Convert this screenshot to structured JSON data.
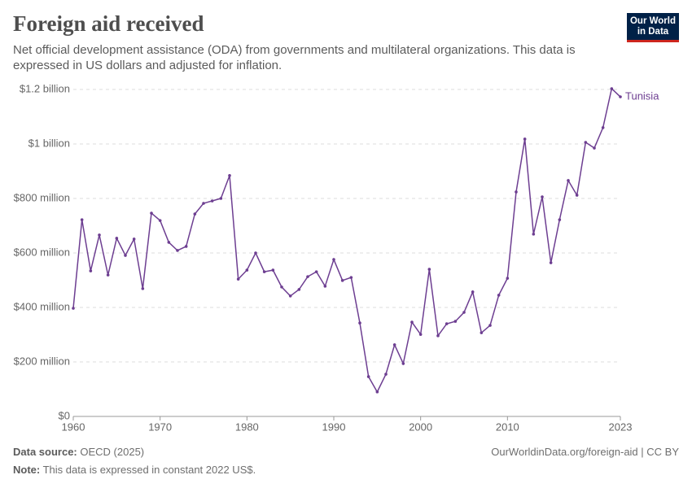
{
  "chart_data": {
    "type": "line",
    "title": "Foreign aid received",
    "subtitle": "Net official development assistance (ODA) from governments and multilateral organizations. This data is expressed in US dollars and adjusted for inflation.",
    "x": [
      1960,
      1961,
      1962,
      1963,
      1964,
      1965,
      1966,
      1967,
      1968,
      1969,
      1970,
      1971,
      1972,
      1973,
      1974,
      1975,
      1976,
      1977,
      1978,
      1979,
      1980,
      1981,
      1982,
      1983,
      1984,
      1985,
      1986,
      1987,
      1988,
      1989,
      1990,
      1991,
      1992,
      1993,
      1994,
      1995,
      1996,
      1997,
      1998,
      1999,
      2000,
      2001,
      2002,
      2003,
      2004,
      2005,
      2006,
      2007,
      2008,
      2009,
      2010,
      2011,
      2012,
      2013,
      2014,
      2015,
      2016,
      2017,
      2018,
      2019,
      2020,
      2021,
      2022,
      2023
    ],
    "series": [
      {
        "name": "Tunisia",
        "color": "#6d3e91",
        "values": [
          397000000,
          722000000,
          534000000,
          666000000,
          519000000,
          654000000,
          591000000,
          651000000,
          469000000,
          746000000,
          719000000,
          639000000,
          609000000,
          624000000,
          743000000,
          782000000,
          791000000,
          800000000,
          884000000,
          504000000,
          537000000,
          600000000,
          531000000,
          537000000,
          475000000,
          442000000,
          466000000,
          513000000,
          531000000,
          478000000,
          576000000,
          499000000,
          510000000,
          343000000,
          146000000,
          90000000,
          155000000,
          263000000,
          194000000,
          346000000,
          301000000,
          540000000,
          296000000,
          340000000,
          349000000,
          382000000,
          457000000,
          307000000,
          334000000,
          445000000,
          507000000,
          824000000,
          1018000000,
          669000000,
          806000000,
          564000000,
          722000000,
          866000000,
          812000000,
          1006000000,
          985000000,
          1060000000,
          1203000000,
          1173000000
        ]
      }
    ],
    "xlim": [
      1960,
      2023
    ],
    "xticks": [
      1960,
      1970,
      1980,
      1990,
      2000,
      2010,
      2023
    ],
    "ylim": [
      0,
      1200000000
    ],
    "yticks": [
      {
        "value": 0,
        "label": "$0"
      },
      {
        "value": 200000000,
        "label": "$200 million"
      },
      {
        "value": 400000000,
        "label": "$400 million"
      },
      {
        "value": 600000000,
        "label": "$600 million"
      },
      {
        "value": 800000000,
        "label": "$800 million"
      },
      {
        "value": 1000000000,
        "label": "$1 billion"
      },
      {
        "value": 1200000000,
        "label": "$1.2 billion"
      }
    ],
    "grid": true
  },
  "logo": {
    "line1": "Our World",
    "line2": "in Data"
  },
  "footer": {
    "source_label": "Data source:",
    "source": "OECD (2025)",
    "url": "OurWorldinData.org/foreign-aid | CC BY",
    "note_label": "Note:",
    "note": "This data is expressed in constant 2022 US$."
  }
}
